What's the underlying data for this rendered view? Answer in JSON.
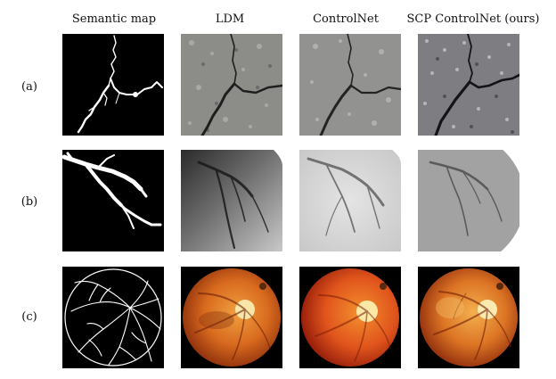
{
  "figure": {
    "column_headers": [
      "Semantic map",
      "LDM",
      "ControlNet",
      "SCP ControlNet (ours)"
    ],
    "row_labels": [
      "(a)",
      "(b)",
      "(c)"
    ],
    "rows": [
      {
        "label": "(a)",
        "content": "road crack",
        "images": [
          "semantic-map-crack",
          "ldm-crack",
          "controlnet-crack",
          "scp-controlnet-crack"
        ]
      },
      {
        "label": "(b)",
        "content": "coronary angiogram",
        "images": [
          "semantic-map-vessel",
          "ldm-angiogram",
          "controlnet-angiogram",
          "scp-controlnet-angiogram"
        ]
      },
      {
        "label": "(c)",
        "content": "retinal fundus",
        "images": [
          "semantic-map-retina",
          "ldm-fundus",
          "controlnet-fundus",
          "scp-controlnet-fundus"
        ]
      }
    ]
  }
}
